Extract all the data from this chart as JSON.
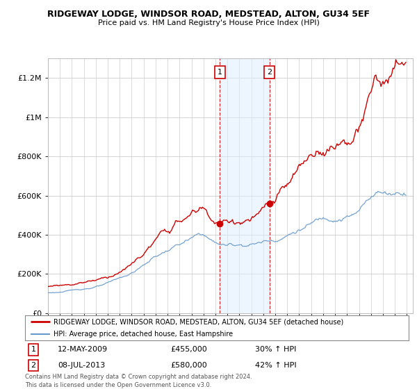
{
  "title": "RIDGEWAY LODGE, WINDSOR ROAD, MEDSTEAD, ALTON, GU34 5EF",
  "subtitle": "Price paid vs. HM Land Registry's House Price Index (HPI)",
  "ylim": [
    0,
    1300000
  ],
  "yticks": [
    0,
    200000,
    400000,
    600000,
    800000,
    1000000,
    1200000
  ],
  "ytick_labels": [
    "£0",
    "£200K",
    "£400K",
    "£600K",
    "£800K",
    "£1M",
    "£1.2M"
  ],
  "x_start_year": 1995,
  "x_end_year": 2025,
  "transaction1_date": 2009.37,
  "transaction1_price": 455000,
  "transaction1_label": "1",
  "transaction2_date": 2013.52,
  "transaction2_price": 580000,
  "transaction2_label": "2",
  "line1_color": "#cc0000",
  "line2_color": "#6699cc",
  "shading_color": "#ddeeff",
  "vline_color": "#cc0000",
  "legend_line1": "RIDGEWAY LODGE, WINDSOR ROAD, MEDSTEAD, ALTON, GU34 5EF (detached house)",
  "legend_line2": "HPI: Average price, detached house, East Hampshire",
  "footnote1": "Contains HM Land Registry data © Crown copyright and database right 2024.",
  "footnote2": "This data is licensed under the Open Government Licence v3.0.",
  "background_color": "#ffffff",
  "grid_color": "#cccccc",
  "trans1_date_str": "12-MAY-2009",
  "trans1_price_str": "£455,000",
  "trans1_hpi_str": "30% ↑ HPI",
  "trans2_date_str": "08-JUL-2013",
  "trans2_price_str": "£580,000",
  "trans2_hpi_str": "42% ↑ HPI"
}
